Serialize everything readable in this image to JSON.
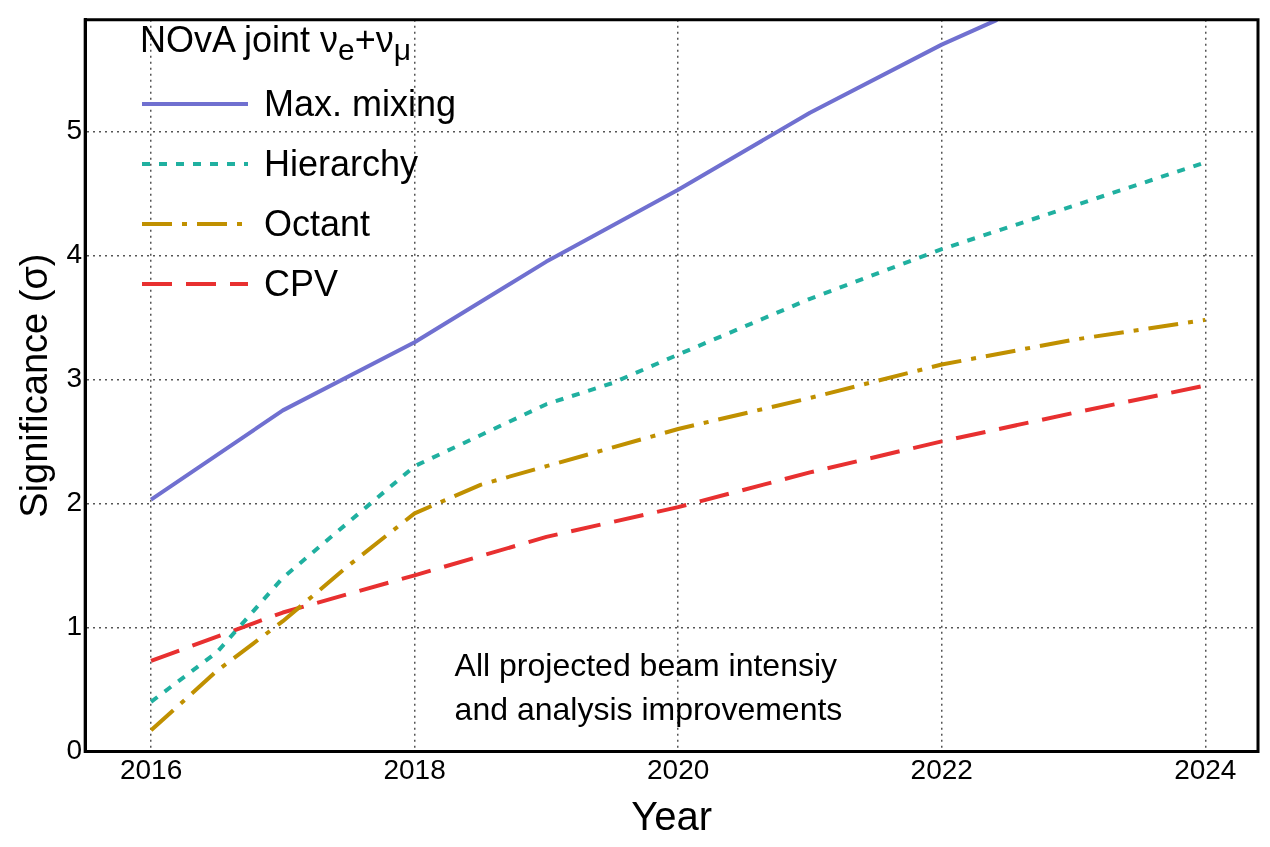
{
  "chart_data": {
    "type": "line",
    "xlabel": "Year",
    "ylabel": "Significance (σ)",
    "legend_title": "NOvA joint ν$_{e}$+ν$_{μ}$",
    "xlim": [
      2015.5,
      2024.4
    ],
    "xticks": [
      2016,
      2018,
      2020,
      2022,
      2024
    ],
    "ylim": [
      0,
      5.9
    ],
    "yticks": [
      0,
      1,
      2,
      3,
      4,
      5
    ],
    "grid": true,
    "legend": "top left",
    "marker": "none",
    "annotations": [
      "All projected beam intensiy\nand analysis improvements"
    ],
    "series": [
      {
        "name": "Max. mixing",
        "color": "#7070d0",
        "line_style": "solid",
        "x": [
          2016,
          2017,
          2018,
          2019,
          2020,
          2021,
          2022,
          2022.42
        ],
        "values": [
          2.03,
          2.75,
          3.3,
          3.95,
          4.53,
          5.15,
          5.7,
          5.9
        ]
      },
      {
        "name": "Hierarchy",
        "color": "#20b0a0",
        "line_style": "dotted",
        "x": [
          2016,
          2016.5,
          2017,
          2017.5,
          2018,
          2018.5,
          2019,
          2019.5,
          2020,
          2021,
          2022,
          2023,
          2024
        ],
        "values": [
          0.4,
          0.8,
          1.4,
          1.85,
          2.3,
          2.55,
          2.8,
          2.97,
          3.2,
          3.65,
          4.05,
          4.4,
          4.75
        ]
      },
      {
        "name": "Octant",
        "color": "#c09000",
        "line_style": "dashdot",
        "x": [
          2016,
          2016.5,
          2017,
          2017.5,
          2018,
          2018.5,
          2019,
          2020,
          2021,
          2022,
          2023,
          2024
        ],
        "values": [
          0.17,
          0.65,
          1.05,
          1.5,
          1.92,
          2.15,
          2.3,
          2.6,
          2.85,
          3.12,
          3.32,
          3.48
        ]
      },
      {
        "name": "CPV",
        "color": "#e83030",
        "line_style": "dashed",
        "x": [
          2016,
          2017,
          2018,
          2019,
          2020,
          2021,
          2022,
          2023,
          2024
        ],
        "values": [
          0.73,
          1.12,
          1.42,
          1.73,
          1.97,
          2.25,
          2.5,
          2.73,
          2.95
        ]
      }
    ]
  }
}
